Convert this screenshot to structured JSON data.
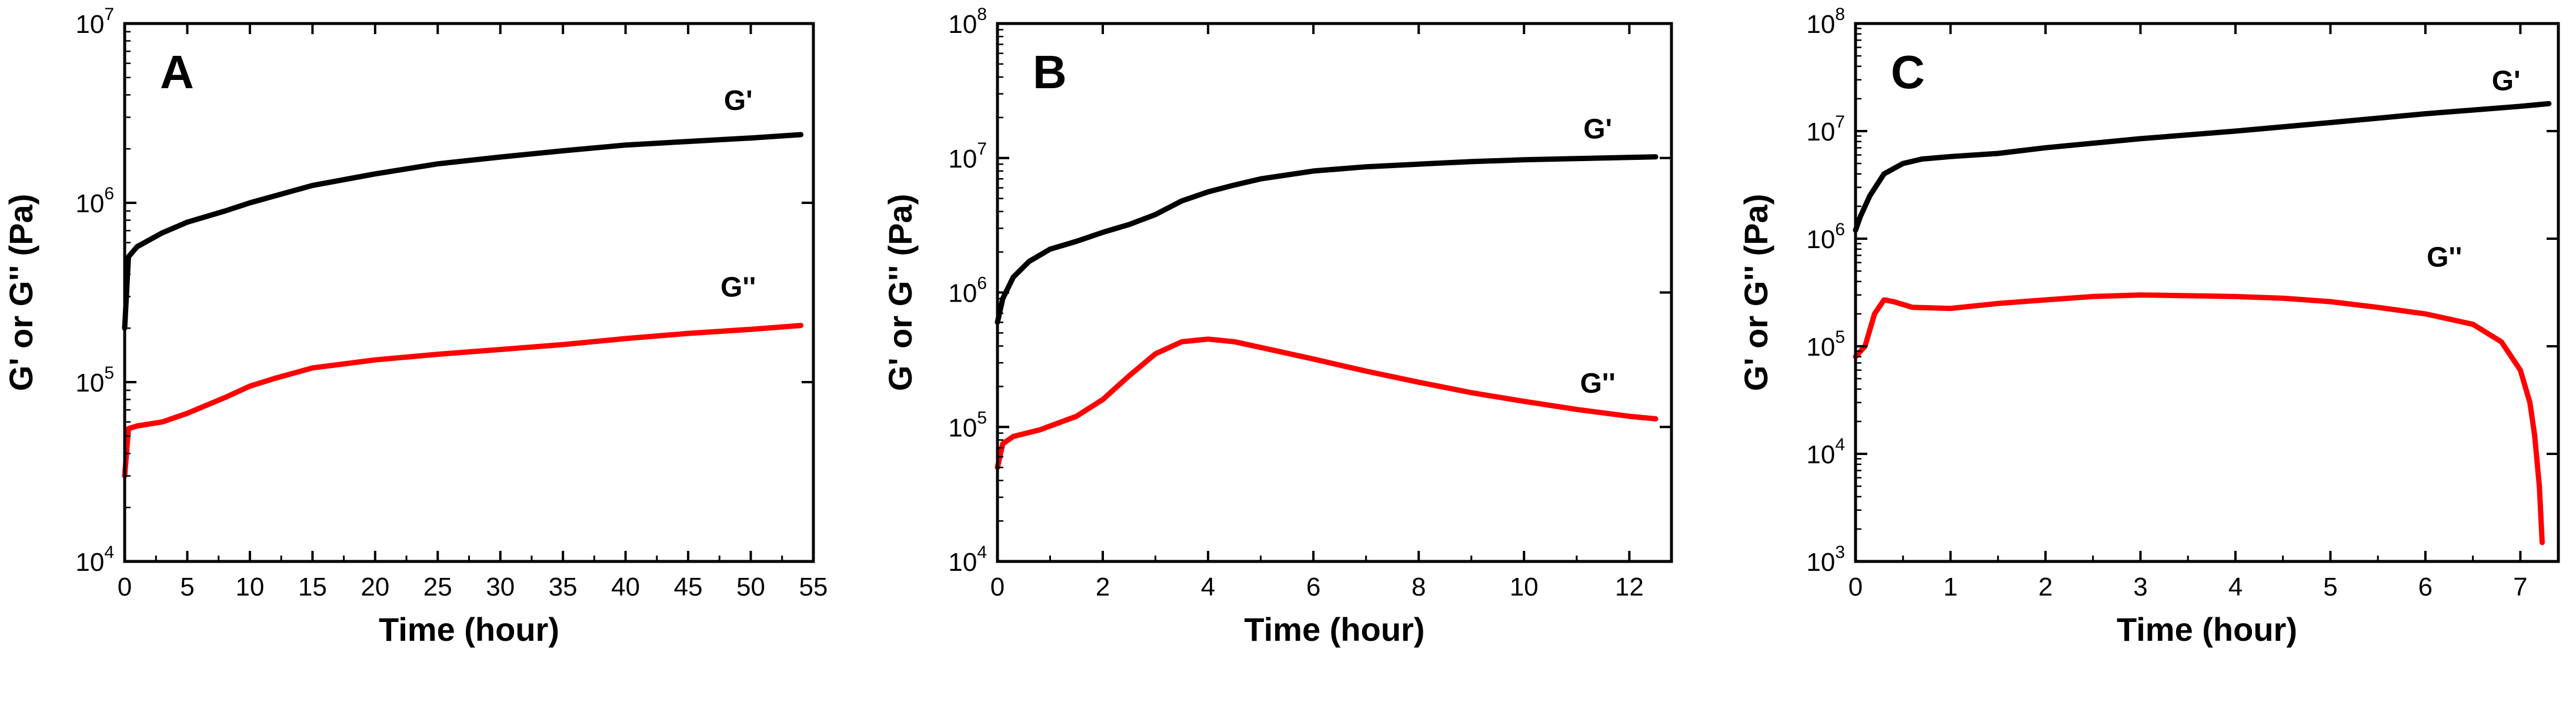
{
  "chart_data": [
    {
      "type": "line",
      "panel": "A",
      "xlabel": "Time (hour)",
      "ylabel": "G' or G'' (Pa)",
      "y_scale": "log",
      "xlim": [
        0,
        55
      ],
      "ylim": [
        10000,
        10000000
      ],
      "x_ticks": [
        "0",
        "5",
        "10",
        "15",
        "20",
        "25",
        "30",
        "35",
        "40",
        "45",
        "50",
        "55"
      ],
      "y_tick_exponents": [
        "4",
        "5",
        "6",
        "7"
      ],
      "series": [
        {
          "name": "G'",
          "label": "G'",
          "color": "#000000",
          "points": [
            [
              0,
              200000
            ],
            [
              0.3,
              500000
            ],
            [
              1,
              570000
            ],
            [
              3,
              680000
            ],
            [
              5,
              780000
            ],
            [
              8,
              900000
            ],
            [
              10,
              1000000
            ],
            [
              15,
              1250000
            ],
            [
              20,
              1450000
            ],
            [
              25,
              1650000
            ],
            [
              30,
              1800000
            ],
            [
              35,
              1950000
            ],
            [
              40,
              2100000
            ],
            [
              45,
              2200000
            ],
            [
              50,
              2300000
            ],
            [
              54,
              2400000
            ]
          ]
        },
        {
          "name": "G''",
          "label": "G''",
          "color": "#ff0000",
          "points": [
            [
              0,
              30000
            ],
            [
              0.3,
              55000
            ],
            [
              1,
              57000
            ],
            [
              3,
              60000
            ],
            [
              5,
              67000
            ],
            [
              8,
              82000
            ],
            [
              10,
              95000
            ],
            [
              12,
              105000
            ],
            [
              15,
              120000
            ],
            [
              20,
              133000
            ],
            [
              25,
              143000
            ],
            [
              30,
              152000
            ],
            [
              35,
              162000
            ],
            [
              40,
              175000
            ],
            [
              45,
              187000
            ],
            [
              50,
              197000
            ],
            [
              54,
              207000
            ]
          ]
        }
      ]
    },
    {
      "type": "line",
      "panel": "B",
      "xlabel": "Time (hour)",
      "ylabel": "G' or G'' (Pa)",
      "y_scale": "log",
      "xlim": [
        0,
        12.8
      ],
      "ylim": [
        10000,
        100000000
      ],
      "x_ticks": [
        "0",
        "2",
        "4",
        "6",
        "8",
        "10",
        "12"
      ],
      "y_tick_exponents": [
        "4",
        "5",
        "6",
        "7",
        "8"
      ],
      "series": [
        {
          "name": "G'",
          "label": "G'",
          "color": "#000000",
          "points": [
            [
              0,
              600000
            ],
            [
              0.1,
              900000
            ],
            [
              0.3,
              1300000
            ],
            [
              0.6,
              1700000
            ],
            [
              1,
              2100000
            ],
            [
              1.5,
              2400000
            ],
            [
              2,
              2800000
            ],
            [
              2.5,
              3200000
            ],
            [
              3,
              3800000
            ],
            [
              3.5,
              4800000
            ],
            [
              4,
              5600000
            ],
            [
              4.5,
              6300000
            ],
            [
              5,
              7000000
            ],
            [
              6,
              8000000
            ],
            [
              7,
              8600000
            ],
            [
              8,
              9000000
            ],
            [
              9,
              9400000
            ],
            [
              10,
              9700000
            ],
            [
              11,
              9900000
            ],
            [
              12,
              10100000
            ],
            [
              12.5,
              10200000
            ]
          ]
        },
        {
          "name": "G''",
          "label": "G''",
          "color": "#ff0000",
          "points": [
            [
              0,
              50000
            ],
            [
              0.1,
              75000
            ],
            [
              0.3,
              85000
            ],
            [
              0.8,
              95000
            ],
            [
              1.5,
              120000
            ],
            [
              2,
              160000
            ],
            [
              2.5,
              240000
            ],
            [
              3,
              350000
            ],
            [
              3.5,
              430000
            ],
            [
              4,
              450000
            ],
            [
              4.5,
              430000
            ],
            [
              5,
              390000
            ],
            [
              6,
              320000
            ],
            [
              7,
              260000
            ],
            [
              8,
              215000
            ],
            [
              9,
              180000
            ],
            [
              10,
              155000
            ],
            [
              11,
              135000
            ],
            [
              12,
              120000
            ],
            [
              12.5,
              115000
            ]
          ]
        }
      ]
    },
    {
      "type": "line",
      "panel": "C",
      "xlabel": "Time (hour)",
      "ylabel": "G' or G'' (Pa)",
      "y_scale": "log",
      "xlim": [
        0,
        7.4
      ],
      "ylim": [
        1000,
        100000000
      ],
      "x_ticks": [
        "0",
        "1",
        "2",
        "3",
        "4",
        "5",
        "6",
        "7"
      ],
      "y_tick_exponents": [
        "3",
        "4",
        "5",
        "6",
        "7",
        "8"
      ],
      "series": [
        {
          "name": "G'",
          "label": "G'",
          "color": "#000000",
          "points": [
            [
              0,
              1200000
            ],
            [
              0.05,
              1600000
            ],
            [
              0.15,
              2500000
            ],
            [
              0.3,
              4000000
            ],
            [
              0.5,
              5000000
            ],
            [
              0.7,
              5500000
            ],
            [
              1,
              5800000
            ],
            [
              1.5,
              6200000
            ],
            [
              2,
              7000000
            ],
            [
              3,
              8500000
            ],
            [
              4,
              10000000
            ],
            [
              5,
              12000000
            ],
            [
              6,
              14500000
            ],
            [
              7,
              17000000
            ],
            [
              7.3,
              18000000
            ]
          ]
        },
        {
          "name": "G''",
          "label": "G''",
          "color": "#ff0000",
          "points": [
            [
              0,
              80000
            ],
            [
              0.1,
              100000
            ],
            [
              0.2,
              200000
            ],
            [
              0.3,
              270000
            ],
            [
              0.4,
              260000
            ],
            [
              0.6,
              230000
            ],
            [
              1,
              225000
            ],
            [
              1.5,
              250000
            ],
            [
              2,
              270000
            ],
            [
              2.5,
              290000
            ],
            [
              3,
              300000
            ],
            [
              3.5,
              295000
            ],
            [
              4,
              290000
            ],
            [
              4.5,
              280000
            ],
            [
              5,
              260000
            ],
            [
              5.5,
              230000
            ],
            [
              6,
              200000
            ],
            [
              6.5,
              160000
            ],
            [
              6.8,
              110000
            ],
            [
              7,
              60000
            ],
            [
              7.1,
              30000
            ],
            [
              7.15,
              15000
            ],
            [
              7.2,
              5000
            ],
            [
              7.23,
              1500
            ]
          ]
        }
      ]
    }
  ]
}
